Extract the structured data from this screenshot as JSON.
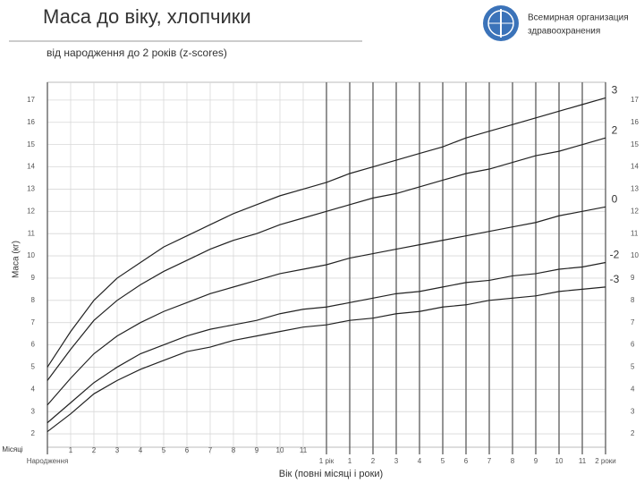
{
  "chart_data": {
    "type": "line",
    "title": "Маса до віку, хлопчики",
    "subtitle": "від народження до 2 років (z-scores)",
    "logo_text": [
      "Всемирная организация",
      "здравоохранения"
    ],
    "y_label": "Маса (кг)",
    "x_label": "Вік (повні місяці і роки)",
    "x_unit_label": "Місяці",
    "x": [
      0,
      1,
      2,
      3,
      4,
      5,
      6,
      7,
      8,
      9,
      10,
      11,
      12,
      13,
      14,
      15,
      16,
      17,
      18,
      19,
      20,
      21,
      22,
      23,
      24
    ],
    "xlim": [
      0,
      24
    ],
    "xticks": [
      {
        "value": 0,
        "label": "Народження"
      },
      1,
      2,
      3,
      4,
      5,
      6,
      7,
      8,
      9,
      10,
      11,
      {
        "value": 12,
        "label": "1 рік"
      },
      {
        "value": 13,
        "label": "1"
      },
      {
        "value": 14,
        "label": "2"
      },
      {
        "value": 15,
        "label": "3"
      },
      {
        "value": 16,
        "label": "4"
      },
      {
        "value": 17,
        "label": "5"
      },
      {
        "value": 18,
        "label": "6"
      },
      {
        "value": 19,
        "label": "7"
      },
      {
        "value": 20,
        "label": "8"
      },
      {
        "value": 21,
        "label": "9"
      },
      {
        "value": 22,
        "label": "10"
      },
      {
        "value": 23,
        "label": "11"
      },
      {
        "value": 24,
        "label": "2 роки"
      }
    ],
    "ylim": [
      1.4,
      17.8
    ],
    "yticks": [
      2,
      3,
      4,
      5,
      6,
      7,
      8,
      9,
      10,
      11,
      12,
      13,
      14,
      15,
      16,
      17
    ],
    "grid": true,
    "series": [
      {
        "name": "3",
        "color": "#222222",
        "values": [
          5.0,
          6.6,
          8.0,
          9.0,
          9.7,
          10.4,
          10.9,
          11.4,
          11.9,
          12.3,
          12.7,
          13.0,
          13.3,
          13.7,
          14.0,
          14.3,
          14.6,
          14.9,
          15.3,
          15.6,
          15.9,
          16.2,
          16.5,
          16.8,
          17.1
        ]
      },
      {
        "name": "2",
        "color": "#222222",
        "values": [
          4.4,
          5.8,
          7.1,
          8.0,
          8.7,
          9.3,
          9.8,
          10.3,
          10.7,
          11.0,
          11.4,
          11.7,
          12.0,
          12.3,
          12.6,
          12.8,
          13.1,
          13.4,
          13.7,
          13.9,
          14.2,
          14.5,
          14.7,
          15.0,
          15.3
        ]
      },
      {
        "name": "0",
        "color": "#222222",
        "values": [
          3.3,
          4.5,
          5.6,
          6.4,
          7.0,
          7.5,
          7.9,
          8.3,
          8.6,
          8.9,
          9.2,
          9.4,
          9.6,
          9.9,
          10.1,
          10.3,
          10.5,
          10.7,
          10.9,
          11.1,
          11.3,
          11.5,
          11.8,
          12.0,
          12.2
        ]
      },
      {
        "name": "-2",
        "color": "#222222",
        "values": [
          2.5,
          3.4,
          4.3,
          5.0,
          5.6,
          6.0,
          6.4,
          6.7,
          6.9,
          7.1,
          7.4,
          7.6,
          7.7,
          7.9,
          8.1,
          8.3,
          8.4,
          8.6,
          8.8,
          8.9,
          9.1,
          9.2,
          9.4,
          9.5,
          9.7
        ]
      },
      {
        "name": "-3",
        "color": "#222222",
        "values": [
          2.1,
          2.9,
          3.8,
          4.4,
          4.9,
          5.3,
          5.7,
          5.9,
          6.2,
          6.4,
          6.6,
          6.8,
          6.9,
          7.1,
          7.2,
          7.4,
          7.5,
          7.7,
          7.8,
          8.0,
          8.1,
          8.2,
          8.4,
          8.5,
          8.6
        ]
      }
    ]
  }
}
